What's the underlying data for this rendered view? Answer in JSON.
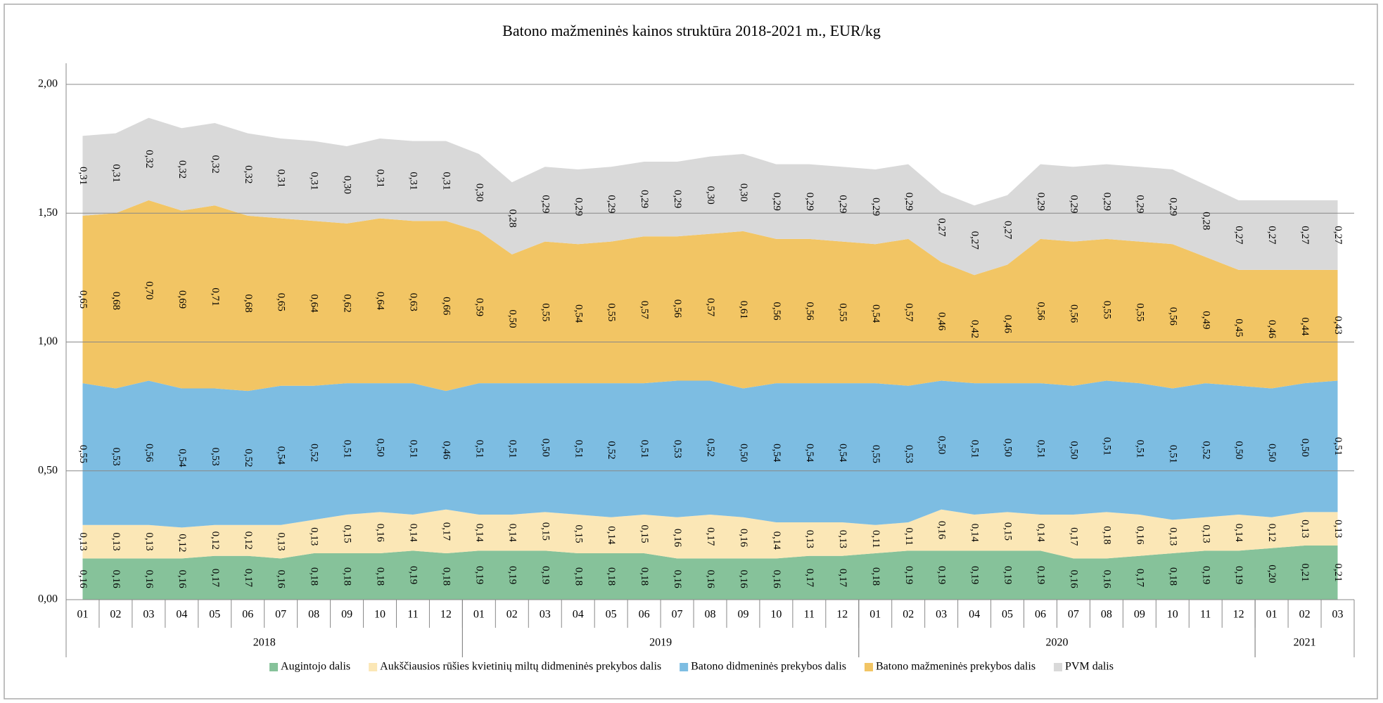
{
  "chart_data": {
    "type": "stacked_area",
    "title": "Batono mažmeninės  kainos struktūra 2018-2021 m., EUR/kg",
    "groups": [
      {
        "name": "2018",
        "categories": [
          "01",
          "02",
          "03",
          "04",
          "05",
          "06",
          "07",
          "08",
          "09",
          "10",
          "11",
          "12"
        ]
      },
      {
        "name": "2019",
        "categories": [
          "01",
          "02",
          "03",
          "04",
          "05",
          "06",
          "07",
          "08",
          "09",
          "10",
          "11",
          "12"
        ]
      },
      {
        "name": "2020",
        "categories": [
          "01",
          "02",
          "03",
          "04",
          "05",
          "06",
          "07",
          "08",
          "09",
          "10",
          "11",
          "12"
        ]
      },
      {
        "name": "2021",
        "categories": [
          "01",
          "02",
          "03"
        ]
      }
    ],
    "ylim": [
      0,
      2
    ],
    "yticks": [
      {
        "value": 0,
        "label": "0,00"
      },
      {
        "value": 0.5,
        "label": "0,50"
      },
      {
        "value": 1,
        "label": "1,00"
      },
      {
        "value": 1.5,
        "label": "1,50"
      },
      {
        "value": 2,
        "label": "2,00"
      }
    ],
    "grid": true,
    "legend": "bottom",
    "series": [
      {
        "name": "Augintojo dalis",
        "color": "#86c29a",
        "values": [
          0.16,
          0.16,
          0.16,
          0.16,
          0.17,
          0.17,
          0.16,
          0.18,
          0.18,
          0.18,
          0.19,
          0.18,
          0.19,
          0.19,
          0.19,
          0.18,
          0.18,
          0.18,
          0.16,
          0.16,
          0.16,
          0.16,
          0.17,
          0.17,
          0.18,
          0.19,
          0.19,
          0.19,
          0.19,
          0.19,
          0.16,
          0.16,
          0.17,
          0.18,
          0.19,
          0.19,
          0.2,
          0.21,
          0.21
        ],
        "value_labels": [
          "0,16",
          "0,16",
          "0,16",
          "0,16",
          "0,17",
          "0,17",
          "0,16",
          "0,18",
          "0,18",
          "0,18",
          "0,19",
          "0,18",
          "0,19",
          "0,19",
          "0,19",
          "0,18",
          "0,18",
          "0,18",
          "0,16",
          "0,16",
          "0,16",
          "0,16",
          "0,17",
          "0,17",
          "0,18",
          "0,19",
          "0,19",
          "0,19",
          "0,19",
          "0,19",
          "0,16",
          "0,16",
          "0,17",
          "0,18",
          "0,19",
          "0,19",
          "0,20",
          "0,21",
          "0,21"
        ]
      },
      {
        "name": "Aukščiausios rūšies kvietinių miltų didmeninės prekybos dalis",
        "color": "#fbe7b6",
        "values": [
          0.13,
          0.13,
          0.13,
          0.12,
          0.12,
          0.12,
          0.13,
          0.13,
          0.15,
          0.16,
          0.14,
          0.17,
          0.14,
          0.14,
          0.15,
          0.15,
          0.14,
          0.15,
          0.16,
          0.17,
          0.16,
          0.14,
          0.13,
          0.13,
          0.11,
          0.11,
          0.16,
          0.14,
          0.15,
          0.14,
          0.17,
          0.18,
          0.16,
          0.13,
          0.13,
          0.14,
          0.12,
          0.13,
          0.13
        ],
        "value_labels": [
          "0,13",
          "0,13",
          "0,13",
          "0,12",
          "0,12",
          "0,12",
          "0,13",
          "0,13",
          "0,15",
          "0,16",
          "0,14",
          "0,17",
          "0,14",
          "0,14",
          "0,15",
          "0,15",
          "0,14",
          "0,15",
          "0,16",
          "0,17",
          "0,16",
          "0,14",
          "0,13",
          "0,13",
          "0,11",
          "0,11",
          "0,16",
          "0,14",
          "0,15",
          "0,14",
          "0,17",
          "0,18",
          "0,16",
          "0,13",
          "0,13",
          "0,14",
          "0,12",
          "0,13",
          "0,13"
        ]
      },
      {
        "name": "Batono didmeninės prekybos dalis",
        "color": "#7dbde2",
        "values": [
          0.55,
          0.53,
          0.56,
          0.54,
          0.53,
          0.52,
          0.54,
          0.52,
          0.51,
          0.5,
          0.51,
          0.46,
          0.51,
          0.51,
          0.5,
          0.51,
          0.52,
          0.51,
          0.53,
          0.52,
          0.5,
          0.54,
          0.54,
          0.54,
          0.55,
          0.53,
          0.5,
          0.51,
          0.5,
          0.51,
          0.5,
          0.51,
          0.51,
          0.51,
          0.52,
          0.5,
          0.5,
          0.5,
          0.51
        ],
        "value_labels": [
          "0,55",
          "0,53",
          "0,56",
          "0,54",
          "0,53",
          "0,52",
          "0,54",
          "0,52",
          "0,51",
          "0,50",
          "0,51",
          "0,46",
          "0,51",
          "0,51",
          "0,50",
          "0,51",
          "0,52",
          "0,51",
          "0,53",
          "0,52",
          "0,50",
          "0,54",
          "0,54",
          "0,54",
          "0,55",
          "0,53",
          "0,50",
          "0,51",
          "0,50",
          "0,51",
          "0,50",
          "0,51",
          "0,51",
          "0,51",
          "0,52",
          "0,50",
          "0,50",
          "0,50",
          "0,51"
        ]
      },
      {
        "name": "Batono mažmeninės prekybos dalis",
        "color": "#f2c564",
        "values": [
          0.65,
          0.68,
          0.7,
          0.69,
          0.71,
          0.68,
          0.65,
          0.64,
          0.62,
          0.64,
          0.63,
          0.66,
          0.59,
          0.5,
          0.55,
          0.54,
          0.55,
          0.57,
          0.56,
          0.57,
          0.61,
          0.56,
          0.56,
          0.55,
          0.54,
          0.57,
          0.46,
          0.42,
          0.46,
          0.56,
          0.56,
          0.55,
          0.55,
          0.56,
          0.49,
          0.45,
          0.46,
          0.44,
          0.43
        ],
        "value_labels": [
          "0,65",
          "0,68",
          "0,70",
          "0,69",
          "0,71",
          "0,68",
          "0,65",
          "0,64",
          "0,62",
          "0,64",
          "0,63",
          "0,66",
          "0,59",
          "0,50",
          "0,55",
          "0,54",
          "0,55",
          "0,57",
          "0,56",
          "0,57",
          "0,61",
          "0,56",
          "0,56",
          "0,55",
          "0,54",
          "0,57",
          "0,46",
          "0,42",
          "0,46",
          "0,56",
          "0,56",
          "0,55",
          "0,55",
          "0,56",
          "0,49",
          "0,45",
          "0,46",
          "0,44",
          "0,43"
        ]
      },
      {
        "name": "PVM dalis",
        "color": "#d9d9d9",
        "values": [
          0.31,
          0.31,
          0.32,
          0.32,
          0.32,
          0.32,
          0.31,
          0.31,
          0.3,
          0.31,
          0.31,
          0.31,
          0.3,
          0.28,
          0.29,
          0.29,
          0.29,
          0.29,
          0.29,
          0.3,
          0.3,
          0.29,
          0.29,
          0.29,
          0.29,
          0.29,
          0.27,
          0.27,
          0.27,
          0.29,
          0.29,
          0.29,
          0.29,
          0.29,
          0.28,
          0.27,
          0.27,
          0.27,
          0.27
        ],
        "value_labels": [
          "0,31",
          "0,31",
          "0,32",
          "0,32",
          "0,32",
          "0,32",
          "0,31",
          "0,31",
          "0,30",
          "0,31",
          "0,31",
          "0,31",
          "0,30",
          "0,28",
          "0,29",
          "0,29",
          "0,29",
          "0,29",
          "0,29",
          "0,30",
          "0,30",
          "0,29",
          "0,29",
          "0,29",
          "0,29",
          "0,29",
          "0,27",
          "0,27",
          "0,27",
          "0,29",
          "0,29",
          "0,29",
          "0,29",
          "0,29",
          "0,28",
          "0,27",
          "0,27",
          "0,27",
          "0,27"
        ]
      }
    ]
  }
}
